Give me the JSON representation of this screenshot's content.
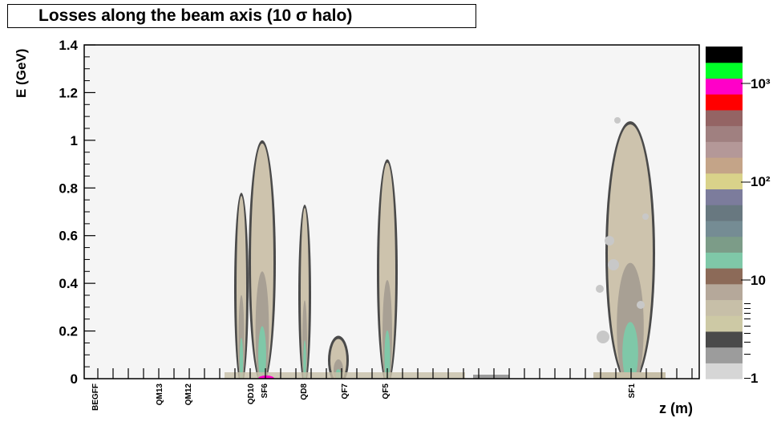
{
  "chart_data": {
    "type": "heatmap",
    "title": "Losses along the beam axis (10 σ halo)",
    "xlabel": "z (m)",
    "ylabel": "E (GeV)",
    "ylim": [
      0,
      1.4
    ],
    "y_ticks": [
      "0",
      "0.2",
      "0.4",
      "0.6",
      "0.8",
      "1",
      "1.2",
      "1.4"
    ],
    "y_tick_values": [
      0,
      0.2,
      0.4,
      0.6,
      0.8,
      1.0,
      1.2,
      1.4
    ],
    "x_element_labels": [
      "BEGFF",
      "QM13",
      "QM12",
      "QD10",
      "SF6",
      "QD8",
      "QF7",
      "QF5",
      "SF1"
    ],
    "color_scale": {
      "log": true,
      "labels": [
        "1",
        "10",
        "10²",
        "10³"
      ],
      "colors": [
        "#d6d6d6",
        "#9c9c9c",
        "#4a4a4a",
        "#cdc9a5",
        "#c7bfa8",
        "#b5a89a",
        "#8c6a58",
        "#7fc8a8",
        "#7c9c88",
        "#758c94",
        "#687880",
        "#7c7c9c",
        "#d9d28a",
        "#c4a488",
        "#b49898",
        "#a08080",
        "#946464",
        "#ff0000",
        "#ff00c8",
        "#00ff28",
        "#000000"
      ]
    },
    "loss_regions": [
      {
        "element": "QD10",
        "e_max": 0.78
      },
      {
        "element": "SF6",
        "e_max": 1.0
      },
      {
        "element": "QD8",
        "e_max": 0.73
      },
      {
        "element": "QF7",
        "e_max": 0.18
      },
      {
        "element": "QF5",
        "e_max": 0.92
      },
      {
        "element": "SF1",
        "e_max": 1.08
      }
    ]
  }
}
